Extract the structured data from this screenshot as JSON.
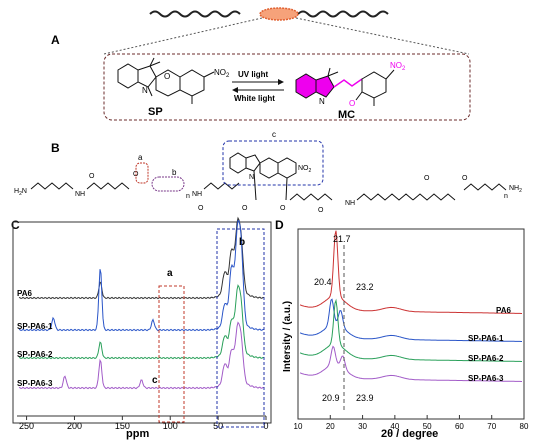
{
  "panels": {
    "a": "A",
    "b": "B",
    "c": "C",
    "d": "D"
  },
  "scheme_a": {
    "uv_label": "UV light",
    "white_label": "White light",
    "left_name": "SP",
    "right_name": "MC",
    "no2": "NO",
    "no2_sub": "2",
    "n_atom": "N",
    "o_atom": "O"
  },
  "scheme_b": {
    "h2n": "H",
    "h2n_sub": "2",
    "h2n_n": "N",
    "nh_labels": [
      "NH",
      "NH",
      "NH"
    ],
    "nh2": "NH",
    "nh2_sub": "2",
    "o_atoms": [
      "O",
      "O",
      "O",
      "O",
      "O",
      "O",
      "O",
      "O"
    ],
    "n_subscripts": [
      "n",
      "n"
    ],
    "box_labels": [
      "a",
      "b",
      "c"
    ],
    "no2": "NO",
    "no2_sub": "2",
    "n_atom": "N"
  },
  "chart_data": [
    {
      "type": "line",
      "panel": "C",
      "xlabel": "ppm",
      "xlim": [
        260,
        0
      ],
      "x_ticks": [
        "250",
        "200",
        "150",
        "100",
        "50",
        "0"
      ],
      "series": [
        {
          "name": "PA6",
          "color": "#333333",
          "peaks_ppm": [
            173,
            43,
            36,
            30,
            26
          ]
        },
        {
          "name": "SP-PA6-1",
          "color": "#2a55c8",
          "peaks_ppm": [
            222,
            173,
            118,
            43,
            36,
            30,
            26
          ]
        },
        {
          "name": "SP-PA6-2",
          "color": "#2aa05a",
          "peaks_ppm": [
            173,
            43,
            36,
            30,
            26
          ]
        },
        {
          "name": "SP-PA6-3",
          "color": "#a25cc8",
          "peaks_ppm": [
            210,
            173,
            130,
            43,
            36,
            30,
            26
          ]
        }
      ],
      "annotations": [
        "a",
        "b",
        "c"
      ]
    },
    {
      "type": "line",
      "panel": "D",
      "xlabel": "2θ / degree",
      "ylabel": "Intersity / (a.u.)",
      "xlim": [
        10,
        80
      ],
      "x_ticks": [
        "10",
        "20",
        "30",
        "40",
        "50",
        "60",
        "70",
        "80"
      ],
      "series": [
        {
          "name": "PA6",
          "color": "#cc3333",
          "peaks_deg": [
            21.7
          ]
        },
        {
          "name": "SP-PA6-1",
          "color": "#2a55c8",
          "peaks_deg": [
            20.4,
            23.2
          ]
        },
        {
          "name": "SP-PA6-2",
          "color": "#2aa05a",
          "peaks_deg": [
            21.7
          ]
        },
        {
          "name": "SP-PA6-3",
          "color": "#a25cc8",
          "peaks_deg": [
            20.9,
            23.9
          ]
        }
      ],
      "annotations": [
        "21.7",
        "20.4",
        "23.2",
        "20.9",
        "23.9"
      ]
    }
  ],
  "colors": {
    "box_red": "#c0392b",
    "box_blue": "#2233aa",
    "magenta": "#ee00ee",
    "ellipse": "#f08040"
  }
}
